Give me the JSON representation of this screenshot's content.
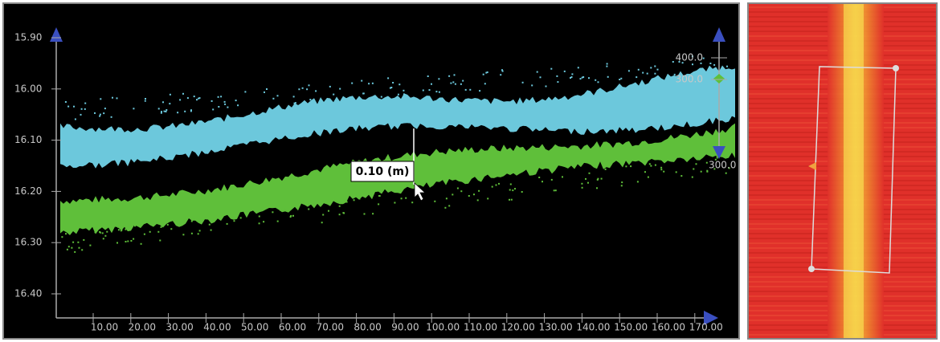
{
  "profile": {
    "y_ticks": [
      "15.90",
      "16.00",
      "16.10",
      "16.20",
      "16.30",
      "16.40"
    ],
    "x_ticks": [
      "10.00",
      "20.00",
      "30.00",
      "40.00",
      "50.00",
      "60.00",
      "70.00",
      "80.00",
      "90.00",
      "100.00",
      "110.00",
      "120.00",
      "130.00",
      "140.00",
      "150.00",
      "160.00",
      "170.00"
    ],
    "right_axis_labels": [
      "400.0",
      "300.0"
    ],
    "right_axis_bottom_label": "300.0",
    "measurement": "0.10 (m)"
  }
}
